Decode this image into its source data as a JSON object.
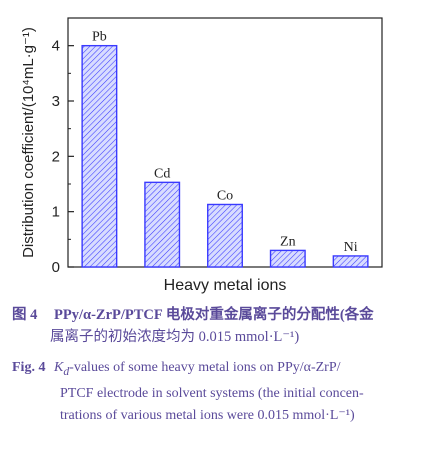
{
  "chart_data": {
    "type": "bar",
    "categories": [
      "Pb",
      "Cd",
      "Co",
      "Zn",
      "Ni"
    ],
    "values": [
      4.0,
      1.53,
      1.13,
      0.3,
      0.2
    ],
    "xlabel": "Heavy metal ions",
    "ylabel": "Distribution coefficient/(10⁴mL·g⁻¹)",
    "ylim": [
      0,
      4.5
    ],
    "yticks": [
      0,
      1,
      2,
      3,
      4
    ],
    "bar_fill": "#d8dcff",
    "bar_edge": "#3a3aff"
  },
  "caption_cn": {
    "label": "图 4",
    "line1": "PPy/α-ZrP/PTCF 电极对重金属离子的分配性(各金",
    "line2": "属离子的初始浓度均为 0.015 mmol·L⁻¹)"
  },
  "caption_en": {
    "label": "Fig. 4",
    "kd": "K",
    "kd_sub": "d",
    "line1_rest": "-values of some heavy metal ions on PPy/α-ZrP/",
    "line2": "PTCF electrode in solvent systems (the initial concen-",
    "line3": "trations of various metal ions were 0.015 mmol·L⁻¹)"
  }
}
